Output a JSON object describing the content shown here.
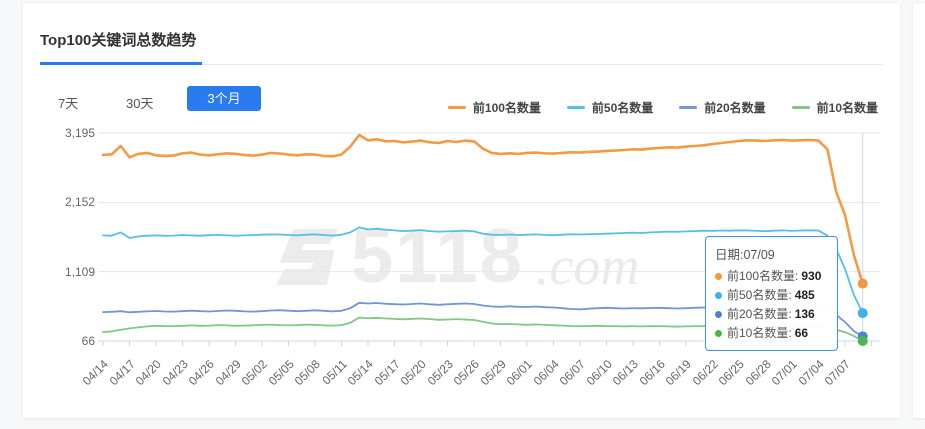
{
  "card": {
    "title": "Top100关键词总数趋势"
  },
  "tabs": {
    "items": [
      {
        "label": "7天",
        "active": false
      },
      {
        "label": "30天",
        "active": false
      },
      {
        "label": "3个月",
        "active": true
      }
    ]
  },
  "colors": {
    "accent": "#2a7af0",
    "grid": "#e7e7e7",
    "axis": "#ccd6eb",
    "crosshair": "#c8dcf2",
    "tooltip_border": "#4191dd",
    "watermark": "#ececec"
  },
  "watermark": {
    "text_bold": "5118",
    "text_suffix": ".com"
  },
  "tooltip": {
    "date_label": "日期:07/09",
    "rows": [
      {
        "label": "前100名数量",
        "value": "930",
        "color": "#f5953e"
      },
      {
        "label": "前50名数量",
        "value": "485",
        "color": "#3eb2e4"
      },
      {
        "label": "前20名数量",
        "value": "136",
        "color": "#4d82d6"
      },
      {
        "label": "前10名数量",
        "value": "66",
        "color": "#4cb64c"
      }
    ]
  },
  "chart_data": {
    "type": "line",
    "title": "Top100关键词总数趋势",
    "x_start": "04/14",
    "x_end": "07/09",
    "interval_days": 1,
    "tick_every": 3,
    "tick_labels": [
      "04/14",
      "04/17",
      "04/20",
      "04/23",
      "04/26",
      "04/29",
      "05/02",
      "05/05",
      "05/08",
      "05/11",
      "05/14",
      "05/17",
      "05/20",
      "05/23",
      "05/26",
      "05/29",
      "06/01",
      "06/04",
      "06/07",
      "06/10",
      "06/13",
      "06/16",
      "06/19",
      "06/22",
      "06/25",
      "06/28",
      "07/01",
      "07/04",
      "07/07"
    ],
    "ylim": [
      66,
      3195
    ],
    "yticks": [
      66,
      1109,
      2152,
      3195
    ],
    "ylabels": [
      "66",
      "1,109",
      "2,152",
      "3,195"
    ],
    "grid": "horizontal",
    "legend_position": "top-right",
    "series": [
      {
        "name": "前100名数量",
        "color": "#f59a42",
        "dot": "#f5953e",
        "width": 2.6,
        "values": [
          2865,
          2875,
          3000,
          2830,
          2880,
          2895,
          2860,
          2850,
          2855,
          2890,
          2900,
          2870,
          2860,
          2875,
          2890,
          2880,
          2865,
          2855,
          2870,
          2895,
          2885,
          2870,
          2860,
          2875,
          2870,
          2850,
          2845,
          2870,
          2990,
          3165,
          3085,
          3100,
          3070,
          3075,
          3055,
          3065,
          3080,
          3055,
          3045,
          3075,
          3060,
          3080,
          3070,
          2960,
          2895,
          2880,
          2890,
          2880,
          2895,
          2900,
          2890,
          2885,
          2895,
          2905,
          2900,
          2910,
          2915,
          2925,
          2930,
          2940,
          2950,
          2945,
          2960,
          2970,
          2980,
          2975,
          2990,
          3000,
          3010,
          3030,
          3045,
          3060,
          3075,
          3085,
          3080,
          3075,
          3085,
          3090,
          3080,
          3085,
          3090,
          3080,
          2950,
          2310,
          1960,
          1360,
          930
        ]
      },
      {
        "name": "前50名数量",
        "color": "#54c0e8",
        "dot": "#3eb2e4",
        "width": 1.8,
        "values": [
          1655,
          1650,
          1700,
          1615,
          1640,
          1650,
          1655,
          1648,
          1652,
          1660,
          1655,
          1650,
          1658,
          1662,
          1655,
          1650,
          1655,
          1660,
          1665,
          1670,
          1668,
          1660,
          1655,
          1665,
          1670,
          1660,
          1650,
          1665,
          1700,
          1775,
          1745,
          1755,
          1740,
          1730,
          1720,
          1725,
          1735,
          1720,
          1710,
          1715,
          1720,
          1725,
          1715,
          1680,
          1665,
          1660,
          1668,
          1660,
          1665,
          1670,
          1662,
          1658,
          1665,
          1672,
          1668,
          1672,
          1675,
          1680,
          1685,
          1690,
          1695,
          1690,
          1700,
          1705,
          1712,
          1708,
          1715,
          1720,
          1725,
          1722,
          1728,
          1725,
          1730,
          1728,
          1722,
          1718,
          1725,
          1730,
          1722,
          1728,
          1732,
          1728,
          1650,
          1450,
          1150,
          760,
          485
        ]
      },
      {
        "name": "前20名数量",
        "color": "#7096d9",
        "dot": "#4d82d6",
        "width": 1.8,
        "values": [
          500,
          505,
          515,
          498,
          505,
          512,
          518,
          510,
          508,
          515,
          522,
          515,
          510,
          518,
          525,
          520,
          512,
          508,
          515,
          525,
          530,
          522,
          515,
          520,
          528,
          520,
          512,
          520,
          560,
          640,
          630,
          638,
          625,
          620,
          615,
          622,
          630,
          618,
          610,
          618,
          625,
          630,
          622,
          600,
          585,
          580,
          588,
          580,
          578,
          585,
          575,
          570,
          560,
          548,
          542,
          552,
          560,
          565,
          560,
          555,
          560,
          558,
          562,
          565,
          560,
          555,
          560,
          565,
          570,
          562,
          558,
          562,
          568,
          565,
          560,
          556,
          562,
          568,
          560,
          575,
          580,
          572,
          540,
          460,
          350,
          215,
          136
        ]
      },
      {
        "name": "前10名数量",
        "color": "#82c785",
        "dot": "#4cb64c",
        "width": 1.8,
        "values": [
          200,
          210,
          235,
          255,
          270,
          285,
          295,
          290,
          288,
          295,
          300,
          295,
          298,
          305,
          300,
          295,
          298,
          302,
          308,
          312,
          305,
          300,
          305,
          312,
          308,
          300,
          298,
          305,
          340,
          420,
          408,
          415,
          405,
          398,
          392,
          398,
          405,
          395,
          385,
          390,
          395,
          390,
          382,
          355,
          330,
          318,
          322,
          315,
          310,
          315,
          308,
          302,
          298,
          292,
          288,
          292,
          295,
          290,
          288,
          285,
          288,
          285,
          288,
          290,
          286,
          282,
          285,
          288,
          290,
          285,
          282,
          285,
          288,
          285,
          280,
          278,
          282,
          285,
          280,
          288,
          292,
          285,
          270,
          235,
          200,
          140,
          66
        ]
      }
    ]
  }
}
